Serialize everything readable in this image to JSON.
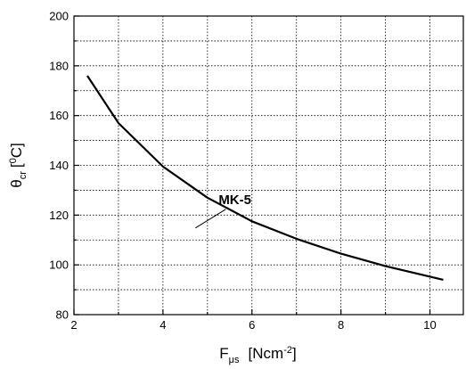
{
  "chart_data": {
    "type": "line",
    "title": "",
    "xlabel": {
      "main": "F",
      "sub": "μs",
      "unit_open": "[Ncm",
      "unit_sup": "-2",
      "unit_close": "]"
    },
    "ylabel": {
      "main": "θ",
      "sub": "cr",
      "unit_open": "[",
      "unit_sup": "0",
      "unit_close": "C]"
    },
    "xlim": [
      2,
      10.75
    ],
    "ylim": [
      80,
      200
    ],
    "xticks": [
      2,
      4,
      6,
      8,
      10
    ],
    "yticks": [
      80,
      100,
      120,
      140,
      160,
      180,
      200
    ],
    "x_minor_ticks": [
      3,
      5,
      7,
      9
    ],
    "y_minor_ticks": [
      90,
      110,
      130,
      150,
      170,
      190
    ],
    "grid": true,
    "series": [
      {
        "name": "MK-5",
        "x": [
          2.3,
          3.0,
          4.0,
          5.0,
          6.0,
          7.0,
          8.0,
          9.0,
          10.3
        ],
        "y": [
          176,
          157,
          139.5,
          127,
          117.5,
          110.5,
          104.5,
          99.5,
          94
        ]
      }
    ],
    "annotations": [
      {
        "text": "MK-5",
        "x": 5.25,
        "y": 124.5
      }
    ]
  }
}
